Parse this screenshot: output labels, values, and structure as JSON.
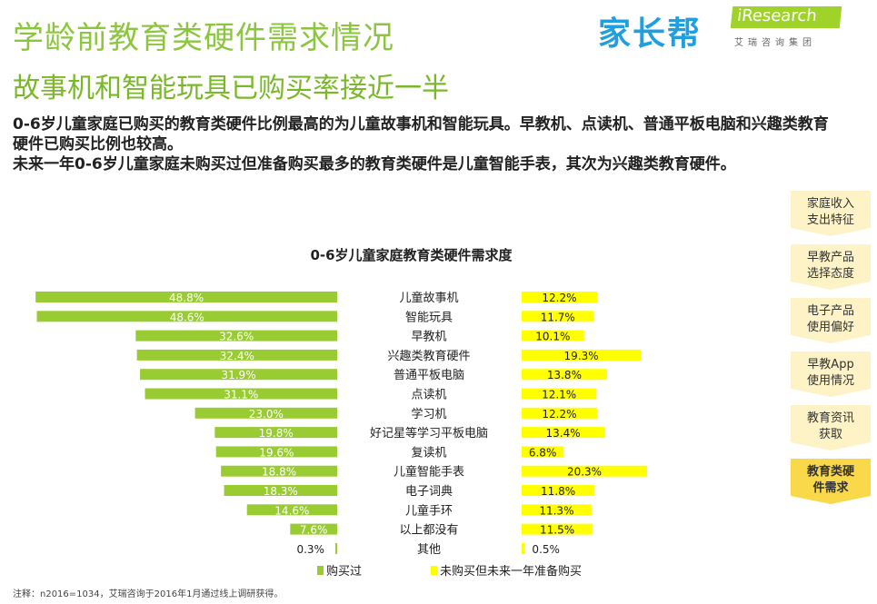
{
  "header": {
    "title": "学龄前教育类硬件需求情况",
    "subtitle": "故事机和智能玩具已购买率接近一半",
    "desc": [
      "0-6岁儿童家庭已购买的教育类硬件比例最高的为儿童故事机和智能玩具。早教机、点读机、普通平板电脑和兴趣类教育硬件已购买比例也较高。",
      "未来一年0-6岁儿童家庭未购买过但准备购买最多的教育类硬件是儿童智能手表，其次为兴趣类教育硬件。"
    ]
  },
  "logo": {
    "brand1": "家长帮",
    "brand2": "iResearch",
    "brand2_sub": "艾瑞咨询集团"
  },
  "sidebar": {
    "steps": [
      "家庭收入支出特征",
      "早教产品选择态度",
      "电子产品使用偏好",
      "早教App使用情况",
      "教育资讯获取",
      "教育类硬件需求"
    ],
    "active": 5
  },
  "chart_data": {
    "type": "bar",
    "title": "0-6岁儿童家庭教育类硬件需求度",
    "categories": [
      "儿童故事机",
      "智能玩具",
      "早教机",
      "兴趣类教育硬件",
      "普通平板电脑",
      "点读机",
      "学习机",
      "好记星等学习平板电脑",
      "复读机",
      "儿童智能手表",
      "电子词典",
      "儿童手环",
      "以上都没有",
      "其他"
    ],
    "series": [
      {
        "name": "购买过",
        "color": "#99cc33",
        "values": [
          48.8,
          48.6,
          32.6,
          32.4,
          31.9,
          31.1,
          23.0,
          19.8,
          19.6,
          18.8,
          18.3,
          14.6,
          7.6,
          0.3
        ]
      },
      {
        "name": "未购买但未来一年准备购买",
        "color": "#ffff00",
        "values": [
          12.2,
          11.7,
          10.1,
          19.3,
          13.8,
          12.1,
          12.2,
          13.4,
          6.8,
          20.3,
          11.8,
          11.3,
          11.5,
          0.5
        ]
      }
    ],
    "unit": "%"
  },
  "note": "注释：n2016=1034，艾瑞咨询于2016年1月通过线上调研获得。"
}
